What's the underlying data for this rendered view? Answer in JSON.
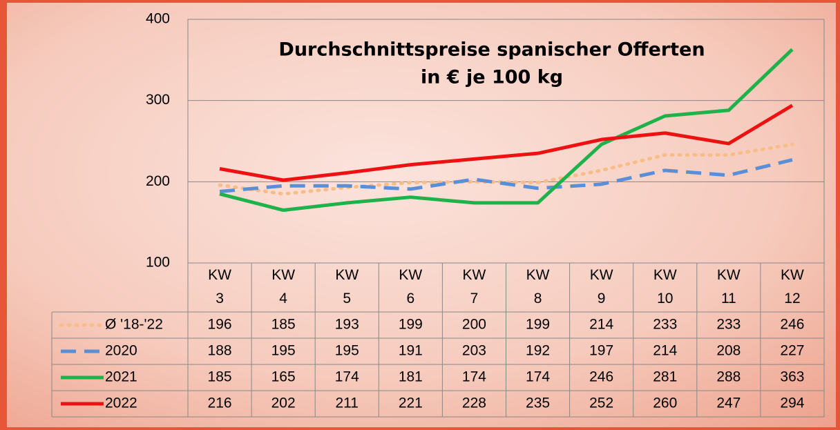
{
  "chart_data": {
    "type": "line",
    "title": [
      "Durchschnittspreise spanischer Offerten",
      "in € je 100 kg"
    ],
    "categories": [
      "KW 3",
      "KW 4",
      "KW 5",
      "KW 6",
      "KW 7",
      "KW 8",
      "KW 9",
      "KW 10",
      "KW 11",
      "KW 12"
    ],
    "series": [
      {
        "name": "Ø '18-'22",
        "color": "#f8bd86",
        "dash": "dotted",
        "values": [
          196,
          185,
          193,
          199,
          200,
          199,
          214,
          233,
          233,
          246
        ]
      },
      {
        "name": "2020",
        "color": "#5a8ed6",
        "dash": "dashed",
        "values": [
          188,
          195,
          195,
          191,
          203,
          192,
          197,
          214,
          208,
          227
        ]
      },
      {
        "name": "2021",
        "color": "#1fb24a",
        "dash": "solid",
        "values": [
          185,
          165,
          174,
          181,
          174,
          174,
          246,
          281,
          288,
          363
        ]
      },
      {
        "name": "2022",
        "color": "#ee1111",
        "dash": "solid",
        "values": [
          216,
          202,
          211,
          221,
          228,
          235,
          252,
          260,
          247,
          294
        ]
      }
    ],
    "ylim": [
      100,
      400
    ],
    "yticks": [
      100,
      200,
      300,
      400
    ],
    "grid": true
  }
}
